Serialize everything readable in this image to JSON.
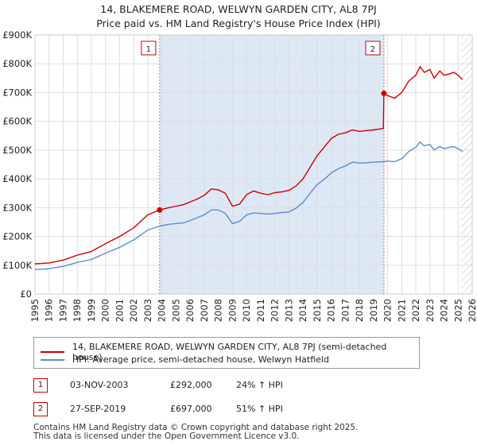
{
  "title_line1": "14, BLAKEMERE ROAD, WELWYN GARDEN CITY, AL8 7PJ",
  "title_line2": "Price paid vs. HM Land Registry's House Price Index (HPI)",
  "colors": {
    "property": "#cc0000",
    "hpi": "#5b8ec9",
    "band": "#dde8f5",
    "marker_line": "#e06666",
    "grid": "#dddddd"
  },
  "chart_data": {
    "type": "line",
    "y_ticks": [
      "£0",
      "£100K",
      "£200K",
      "£300K",
      "£400K",
      "£500K",
      "£600K",
      "£700K",
      "£800K",
      "£900K"
    ],
    "x_ticks": [
      "1995",
      "1996",
      "1997",
      "1998",
      "1999",
      "2000",
      "2001",
      "2002",
      "2003",
      "2004",
      "2005",
      "2006",
      "2007",
      "2008",
      "2009",
      "2010",
      "2011",
      "2012",
      "2013",
      "2014",
      "2015",
      "2016",
      "2017",
      "2018",
      "2019",
      "2020",
      "2021",
      "2022",
      "2023",
      "2024",
      "2025",
      "2026"
    ],
    "ylim": [
      0,
      900000
    ],
    "xlim": [
      1995,
      2026
    ],
    "series": [
      {
        "name": "14, BLAKEMERE ROAD, WELWYN GARDEN CITY, AL8 7PJ (semi-detached house)",
        "points": [
          [
            1995.0,
            105000
          ],
          [
            1996.0,
            108000
          ],
          [
            1997.0,
            118000
          ],
          [
            1998.0,
            135000
          ],
          [
            1999.0,
            148000
          ],
          [
            2000.0,
            175000
          ],
          [
            2001.0,
            200000
          ],
          [
            2002.0,
            230000
          ],
          [
            2003.0,
            275000
          ],
          [
            2003.84,
            292000
          ],
          [
            2004.5,
            300000
          ],
          [
            2005.0,
            305000
          ],
          [
            2005.5,
            310000
          ],
          [
            2006.0,
            320000
          ],
          [
            2006.5,
            330000
          ],
          [
            2007.0,
            343000
          ],
          [
            2007.5,
            365000
          ],
          [
            2008.0,
            362000
          ],
          [
            2008.5,
            350000
          ],
          [
            2009.0,
            305000
          ],
          [
            2009.5,
            312000
          ],
          [
            2010.0,
            345000
          ],
          [
            2010.5,
            358000
          ],
          [
            2011.0,
            350000
          ],
          [
            2011.5,
            345000
          ],
          [
            2012.0,
            352000
          ],
          [
            2012.5,
            355000
          ],
          [
            2013.0,
            360000
          ],
          [
            2013.5,
            375000
          ],
          [
            2014.0,
            400000
          ],
          [
            2014.5,
            440000
          ],
          [
            2015.0,
            480000
          ],
          [
            2015.5,
            510000
          ],
          [
            2016.0,
            540000
          ],
          [
            2016.5,
            555000
          ],
          [
            2017.0,
            560000
          ],
          [
            2017.5,
            570000
          ],
          [
            2018.0,
            565000
          ],
          [
            2018.5,
            568000
          ],
          [
            2019.0,
            570000
          ],
          [
            2019.7,
            575000
          ],
          [
            2019.74,
            697000
          ],
          [
            2020.0,
            690000
          ],
          [
            2020.5,
            680000
          ],
          [
            2021.0,
            700000
          ],
          [
            2021.5,
            740000
          ],
          [
            2022.0,
            760000
          ],
          [
            2022.3,
            790000
          ],
          [
            2022.6,
            770000
          ],
          [
            2023.0,
            780000
          ],
          [
            2023.3,
            750000
          ],
          [
            2023.7,
            775000
          ],
          [
            2024.0,
            760000
          ],
          [
            2024.4,
            765000
          ],
          [
            2024.7,
            770000
          ],
          [
            2025.0,
            760000
          ],
          [
            2025.3,
            745000
          ]
        ]
      },
      {
        "name": "HPI: Average price, semi-detached house, Welwyn Hatfield",
        "points": [
          [
            1995.0,
            85000
          ],
          [
            1996.0,
            88000
          ],
          [
            1997.0,
            96000
          ],
          [
            1998.0,
            110000
          ],
          [
            1999.0,
            120000
          ],
          [
            2000.0,
            142000
          ],
          [
            2001.0,
            162000
          ],
          [
            2002.0,
            188000
          ],
          [
            2003.0,
            222000
          ],
          [
            2003.84,
            236000
          ],
          [
            2004.5,
            242000
          ],
          [
            2005.0,
            245000
          ],
          [
            2005.5,
            247000
          ],
          [
            2006.0,
            255000
          ],
          [
            2006.5,
            265000
          ],
          [
            2007.0,
            275000
          ],
          [
            2007.5,
            292000
          ],
          [
            2008.0,
            292000
          ],
          [
            2008.5,
            280000
          ],
          [
            2009.0,
            245000
          ],
          [
            2009.5,
            252000
          ],
          [
            2010.0,
            275000
          ],
          [
            2010.5,
            282000
          ],
          [
            2011.0,
            280000
          ],
          [
            2011.5,
            278000
          ],
          [
            2012.0,
            280000
          ],
          [
            2012.5,
            283000
          ],
          [
            2013.0,
            285000
          ],
          [
            2013.5,
            298000
          ],
          [
            2014.0,
            318000
          ],
          [
            2014.5,
            350000
          ],
          [
            2015.0,
            380000
          ],
          [
            2015.5,
            398000
          ],
          [
            2016.0,
            420000
          ],
          [
            2016.5,
            435000
          ],
          [
            2017.0,
            445000
          ],
          [
            2017.5,
            458000
          ],
          [
            2018.0,
            455000
          ],
          [
            2018.5,
            456000
          ],
          [
            2019.0,
            458000
          ],
          [
            2019.74,
            460000
          ],
          [
            2020.0,
            462000
          ],
          [
            2020.5,
            460000
          ],
          [
            2021.0,
            470000
          ],
          [
            2021.5,
            495000
          ],
          [
            2022.0,
            510000
          ],
          [
            2022.3,
            528000
          ],
          [
            2022.6,
            515000
          ],
          [
            2023.0,
            520000
          ],
          [
            2023.3,
            500000
          ],
          [
            2023.7,
            513000
          ],
          [
            2024.0,
            505000
          ],
          [
            2024.4,
            510000
          ],
          [
            2024.7,
            512000
          ],
          [
            2025.0,
            505000
          ],
          [
            2025.3,
            495000
          ]
        ]
      }
    ],
    "sales": [
      {
        "id": "1",
        "x": 2003.84,
        "y": 292000
      },
      {
        "id": "2",
        "x": 2019.74,
        "y": 697000
      }
    ],
    "future_band": [
      2025.2,
      2026
    ]
  },
  "legend": {
    "property_label": "14, BLAKEMERE ROAD, WELWYN GARDEN CITY, AL8 7PJ (semi-detached house)",
    "hpi_label": "HPI: Average price, semi-detached house, Welwyn Hatfield"
  },
  "transactions": [
    {
      "id": "1",
      "date": "03-NOV-2003",
      "price": "£292,000",
      "delta": "24% ↑ HPI"
    },
    {
      "id": "2",
      "date": "27-SEP-2019",
      "price": "£697,000",
      "delta": "51% ↑ HPI"
    }
  ],
  "footer_line1": "Contains HM Land Registry data © Crown copyright and database right 2025.",
  "footer_line2": "This data is licensed under the Open Government Licence v3.0."
}
